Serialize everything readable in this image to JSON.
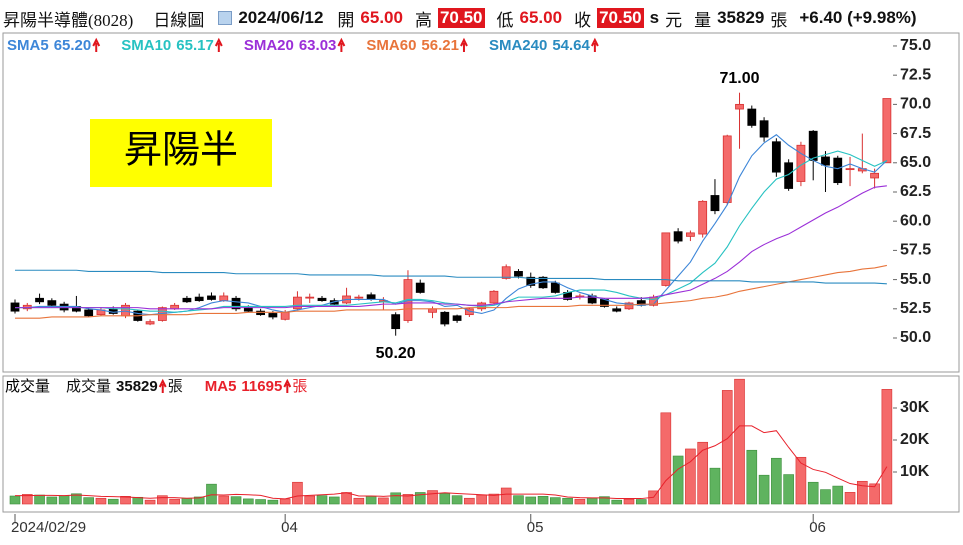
{
  "header": {
    "name": "昇陽半導體(8028)",
    "period": "日線圖",
    "date": "2024/06/12",
    "open_label": "開",
    "open": "65.00",
    "high_label": "高",
    "high": "70.50",
    "low_label": "低",
    "low": "65.00",
    "close_label": "收",
    "close": "70.50",
    "s": "s",
    "currency": "元",
    "volume_label": "量",
    "volume": "35829",
    "volume_unit": "張",
    "change": "+6.40 (+9.98%)"
  },
  "badge": "昇陽半",
  "chart_data": [
    {
      "type": "candlestick",
      "up_color": "#f46a6a",
      "down_color": "#000000",
      "ylim": [
        47.09,
        76.11
      ],
      "yticks": [
        {
          "value": 50,
          "label": "50.0"
        },
        52.5,
        {
          "value": 55,
          "label": "55.0"
        },
        57.5,
        {
          "value": 60,
          "label": "60.0"
        },
        62.5,
        {
          "value": 65,
          "label": "65.0"
        },
        67.5,
        {
          "value": 70,
          "label": "70.0"
        },
        72.5,
        {
          "value": 75,
          "label": "75.0"
        }
      ],
      "annotations": [
        "71.00",
        "50.20"
      ],
      "open": [
        53.0,
        52.5,
        53.4,
        53.2,
        52.9,
        52.7,
        52.4,
        52.0,
        52.5,
        51.9,
        52.3,
        51.2,
        51.5,
        52.5,
        53.4,
        53.5,
        53.6,
        53.2,
        53.4,
        52.6,
        52.3,
        52.1,
        51.6,
        52.5,
        53.5,
        53.4,
        53.2,
        53.0,
        53.5,
        53.7,
        53.2,
        52.0,
        51.5,
        54.7,
        52.2,
        52.2,
        51.9,
        52.0,
        52.5,
        53.0,
        55.1,
        55.7,
        55.2,
        55.2,
        54.7,
        53.9,
        53.6,
        53.6,
        53.3,
        52.5,
        52.5,
        53.2,
        52.8,
        54.5,
        59.1,
        58.7,
        58.9,
        62.2,
        61.6,
        69.6,
        69.6,
        68.6,
        66.8,
        65.0,
        63.4,
        67.7,
        65.5,
        65.4,
        64.5,
        64.3,
        63.7,
        65.0
      ],
      "high": [
        53.3,
        53.0,
        53.8,
        53.4,
        53.1,
        53.6,
        52.6,
        52.6,
        52.7,
        53.0,
        52.4,
        51.6,
        52.7,
        53.0,
        53.6,
        53.8,
        53.9,
        53.9,
        53.6,
        52.8,
        52.5,
        52.3,
        52.4,
        54.0,
        53.8,
        53.6,
        53.4,
        54.3,
        53.7,
        53.9,
        53.5,
        52.2,
        55.8,
        55.0,
        52.7,
        52.3,
        52.0,
        52.6,
        53.1,
        54.1,
        56.3,
        55.9,
        55.6,
        55.3,
        54.9,
        54.1,
        53.8,
        53.8,
        53.4,
        52.7,
        53.1,
        53.5,
        53.7,
        59.0,
        59.4,
        59.2,
        61.8,
        63.6,
        67.4,
        71.0,
        69.9,
        68.9,
        67.1,
        65.3,
        66.8,
        67.8,
        66.0,
        65.6,
        65.5,
        67.5,
        64.5,
        70.5
      ],
      "low": [
        52.1,
        52.3,
        52.9,
        52.6,
        52.2,
        52.2,
        51.8,
        51.9,
        52.0,
        51.7,
        51.4,
        51.1,
        51.4,
        52.4,
        53.0,
        53.1,
        53.2,
        53.1,
        52.3,
        52.2,
        51.9,
        51.6,
        51.5,
        52.4,
        53.0,
        53.1,
        52.8,
        52.9,
        53.2,
        53.2,
        52.4,
        50.2,
        51.3,
        53.8,
        51.7,
        51.0,
        51.3,
        51.8,
        52.3,
        52.9,
        55.0,
        55.1,
        54.3,
        54.2,
        53.8,
        53.2,
        53.3,
        52.9,
        52.6,
        52.2,
        52.4,
        52.7,
        52.7,
        54.4,
        58.1,
        58.3,
        58.6,
        60.6,
        61.4,
        66.2,
        68.0,
        66.8,
        63.8,
        62.6,
        63.0,
        63.5,
        62.5,
        63.1,
        63.0,
        64.1,
        62.8,
        65.0
      ],
      "close": [
        52.3,
        52.8,
        53.1,
        52.8,
        52.4,
        52.3,
        51.9,
        52.4,
        52.1,
        52.8,
        51.5,
        51.4,
        52.6,
        52.8,
        53.1,
        53.2,
        53.3,
        53.6,
        52.5,
        52.3,
        52.0,
        51.8,
        52.2,
        53.5,
        53.5,
        53.2,
        52.9,
        53.6,
        53.5,
        53.3,
        53.2,
        50.8,
        55.0,
        53.9,
        52.5,
        51.2,
        51.5,
        52.5,
        53.0,
        54.0,
        56.1,
        55.3,
        54.5,
        54.3,
        53.9,
        53.3,
        53.6,
        53.0,
        52.7,
        52.3,
        53.0,
        52.8,
        53.5,
        59.0,
        58.3,
        59.0,
        61.7,
        60.9,
        67.3,
        70.0,
        68.2,
        67.2,
        64.2,
        62.8,
        66.5,
        65.2,
        64.8,
        63.3,
        64.5,
        64.5,
        64.1,
        70.5
      ],
      "series": [
        {
          "name": "SMA5",
          "color": "#3d86d8",
          "legend_label": "65.20",
          "values": [
            52.6,
            52.6,
            52.7,
            52.7,
            52.7,
            52.7,
            52.5,
            52.4,
            52.2,
            52.3,
            52.1,
            52.0,
            52.1,
            52.2,
            52.3,
            52.6,
            53.0,
            53.2,
            53.1,
            53.0,
            52.7,
            52.4,
            52.2,
            52.4,
            52.6,
            52.8,
            53.1,
            53.3,
            53.3,
            53.3,
            53.3,
            52.9,
            53.2,
            53.2,
            53.1,
            52.7,
            52.8,
            52.3,
            52.1,
            52.4,
            53.4,
            54.2,
            54.6,
            54.8,
            54.8,
            54.3,
            53.9,
            53.6,
            53.3,
            53.0,
            52.9,
            52.8,
            52.9,
            54.1,
            55.3,
            56.5,
            58.3,
            59.8,
            61.4,
            63.8,
            65.6,
            66.7,
            67.4,
            66.5,
            65.8,
            65.2,
            64.7,
            64.5,
            64.9,
            64.5,
            64.2,
            65.2
          ]
        },
        {
          "name": "SMA10",
          "color": "#27c2c2",
          "legend_label": "65.17",
          "values": [
            52.6,
            52.6,
            52.6,
            52.6,
            52.6,
            52.6,
            52.6,
            52.6,
            52.5,
            52.5,
            52.4,
            52.3,
            52.3,
            52.2,
            52.3,
            52.4,
            52.5,
            52.7,
            52.7,
            52.7,
            52.7,
            52.7,
            52.7,
            52.8,
            52.8,
            52.8,
            52.8,
            52.8,
            52.9,
            53.0,
            53.1,
            53.0,
            53.3,
            53.3,
            53.2,
            53.0,
            52.9,
            52.8,
            52.7,
            52.8,
            53.1,
            53.5,
            53.5,
            53.5,
            53.6,
            53.9,
            54.1,
            54.1,
            54.1,
            53.9,
            53.6,
            53.4,
            53.3,
            53.7,
            54.2,
            54.7,
            55.6,
            56.4,
            57.8,
            59.6,
            61.1,
            62.5,
            63.6,
            64.0,
            64.8,
            65.4,
            65.7,
            66.0,
            65.7,
            65.2,
            64.7,
            65.17
          ]
        },
        {
          "name": "SMA20",
          "color": "#9b2fd8",
          "legend_label": "63.03",
          "values": [
            52.6,
            52.6,
            52.6,
            52.6,
            52.6,
            52.6,
            52.6,
            52.6,
            52.6,
            52.6,
            52.6,
            52.5,
            52.5,
            52.5,
            52.5,
            52.5,
            52.5,
            52.6,
            52.6,
            52.6,
            52.6,
            52.6,
            52.6,
            52.7,
            52.7,
            52.7,
            52.7,
            52.7,
            52.7,
            52.8,
            52.9,
            52.9,
            53.0,
            53.0,
            53.0,
            52.9,
            52.9,
            52.8,
            52.8,
            52.9,
            53.1,
            53.2,
            53.3,
            53.4,
            53.4,
            53.4,
            53.5,
            53.5,
            53.4,
            53.4,
            53.4,
            53.4,
            53.5,
            53.7,
            53.9,
            54.1,
            54.6,
            55.1,
            55.7,
            56.5,
            57.4,
            58.0,
            58.5,
            58.9,
            59.5,
            60.1,
            60.7,
            61.2,
            61.8,
            62.4,
            62.9,
            63.03
          ]
        },
        {
          "name": "SMA60",
          "color": "#e8743b",
          "legend_label": "56.21",
          "values": [
            51.7,
            51.7,
            51.7,
            51.8,
            51.8,
            51.8,
            51.8,
            51.9,
            51.9,
            51.9,
            51.9,
            52.0,
            52.0,
            52.0,
            52.0,
            52.1,
            52.1,
            52.1,
            52.1,
            52.2,
            52.2,
            52.2,
            52.2,
            52.3,
            52.3,
            52.3,
            52.3,
            52.4,
            52.4,
            52.4,
            52.4,
            52.4,
            52.5,
            52.5,
            52.5,
            52.5,
            52.5,
            52.6,
            52.6,
            52.6,
            52.6,
            52.7,
            52.7,
            52.7,
            52.7,
            52.7,
            52.8,
            52.8,
            52.8,
            52.8,
            52.8,
            52.9,
            52.9,
            53.0,
            53.1,
            53.2,
            53.4,
            53.5,
            53.7,
            54.0,
            54.2,
            54.4,
            54.6,
            54.8,
            55.0,
            55.2,
            55.4,
            55.6,
            55.7,
            55.9,
            56.0,
            56.21
          ]
        },
        {
          "name": "SMA240",
          "color": "#2a8bc0",
          "legend_label": "54.64",
          "values": [
            55.8,
            55.8,
            55.8,
            55.8,
            55.8,
            55.8,
            55.7,
            55.7,
            55.7,
            55.7,
            55.7,
            55.7,
            55.6,
            55.6,
            55.6,
            55.6,
            55.6,
            55.6,
            55.5,
            55.5,
            55.5,
            55.5,
            55.5,
            55.5,
            55.4,
            55.4,
            55.4,
            55.4,
            55.4,
            55.4,
            55.3,
            55.3,
            55.3,
            55.3,
            55.3,
            55.3,
            55.2,
            55.2,
            55.2,
            55.2,
            55.2,
            55.2,
            55.1,
            55.1,
            55.1,
            55.1,
            55.1,
            55.1,
            55.0,
            55.0,
            55.0,
            55.0,
            55.0,
            55.0,
            54.9,
            54.9,
            54.9,
            54.9,
            54.9,
            54.9,
            54.8,
            54.8,
            54.8,
            54.8,
            54.8,
            54.8,
            54.7,
            54.7,
            54.7,
            54.7,
            54.7,
            54.64
          ]
        }
      ]
    },
    {
      "type": "bar",
      "title": "成交量",
      "unit": "張",
      "up_color": "#f46a6a",
      "down_color": "#5fb35f",
      "ylim": [
        0,
        40000
      ],
      "yticks": [
        {
          "value": 10000,
          "label": "10K"
        },
        {
          "value": 20000,
          "label": "20K"
        },
        {
          "value": 30000,
          "label": "30K"
        }
      ],
      "categories": [
        "2024/02/29",
        null,
        null,
        null,
        null,
        null,
        null,
        null,
        null,
        null,
        null,
        null,
        null,
        null,
        null,
        null,
        null,
        null,
        null,
        null,
        null,
        null,
        "04",
        null,
        null,
        null,
        null,
        null,
        null,
        null,
        null,
        null,
        null,
        null,
        null,
        null,
        null,
        null,
        null,
        null,
        null,
        null,
        "05",
        null,
        null,
        null,
        null,
        null,
        null,
        null,
        null,
        null,
        null,
        null,
        null,
        null,
        null,
        null,
        null,
        null,
        null,
        null,
        null,
        null,
        null,
        "06",
        null,
        null,
        null,
        null,
        null,
        null
      ],
      "series": [
        {
          "name": "成交量",
          "values": [
            2500,
            3000,
            2800,
            2200,
            2600,
            3200,
            2000,
            1800,
            1500,
            2400,
            2100,
            1200,
            2600,
            1500,
            1800,
            2200,
            6200,
            2500,
            2300,
            1600,
            1400,
            1200,
            1600,
            6800,
            2500,
            2600,
            2200,
            3600,
            1800,
            2400,
            1900,
            3500,
            3000,
            3600,
            4200,
            3300,
            2600,
            1800,
            2800,
            3100,
            5000,
            2600,
            2200,
            2400,
            2000,
            1800,
            1500,
            1900,
            2300,
            1200,
            1500,
            1400,
            4100,
            28500,
            15000,
            17200,
            19300,
            11200,
            35500,
            39000,
            16800,
            9000,
            14300,
            9200,
            14600,
            6800,
            4500,
            5600,
            3645,
            7100,
            6300,
            35829
          ]
        },
        {
          "name": "MA5",
          "type": "line",
          "color": "#e8212b",
          "values": [
            2600,
            2600,
            2700,
            2700,
            2600,
            2800,
            2600,
            2400,
            2300,
            2200,
            2000,
            1800,
            2000,
            2000,
            1800,
            1900,
            2900,
            2800,
            3000,
            2900,
            2700,
            1800,
            1600,
            2500,
            2700,
            2900,
            3100,
            3500,
            2500,
            2500,
            2400,
            2600,
            2500,
            2900,
            3200,
            3500,
            3300,
            3100,
            2900,
            2700,
            3100,
            3100,
            3100,
            3100,
            2800,
            2200,
            2000,
            1900,
            1900,
            1700,
            1700,
            1700,
            2100,
            7300,
            10900,
            13200,
            16800,
            18200,
            20400,
            24400,
            24400,
            22300,
            22900,
            17700,
            12800,
            10800,
            9900,
            8100,
            6400,
            5700,
            5400,
            11695
          ]
        }
      ]
    }
  ]
}
